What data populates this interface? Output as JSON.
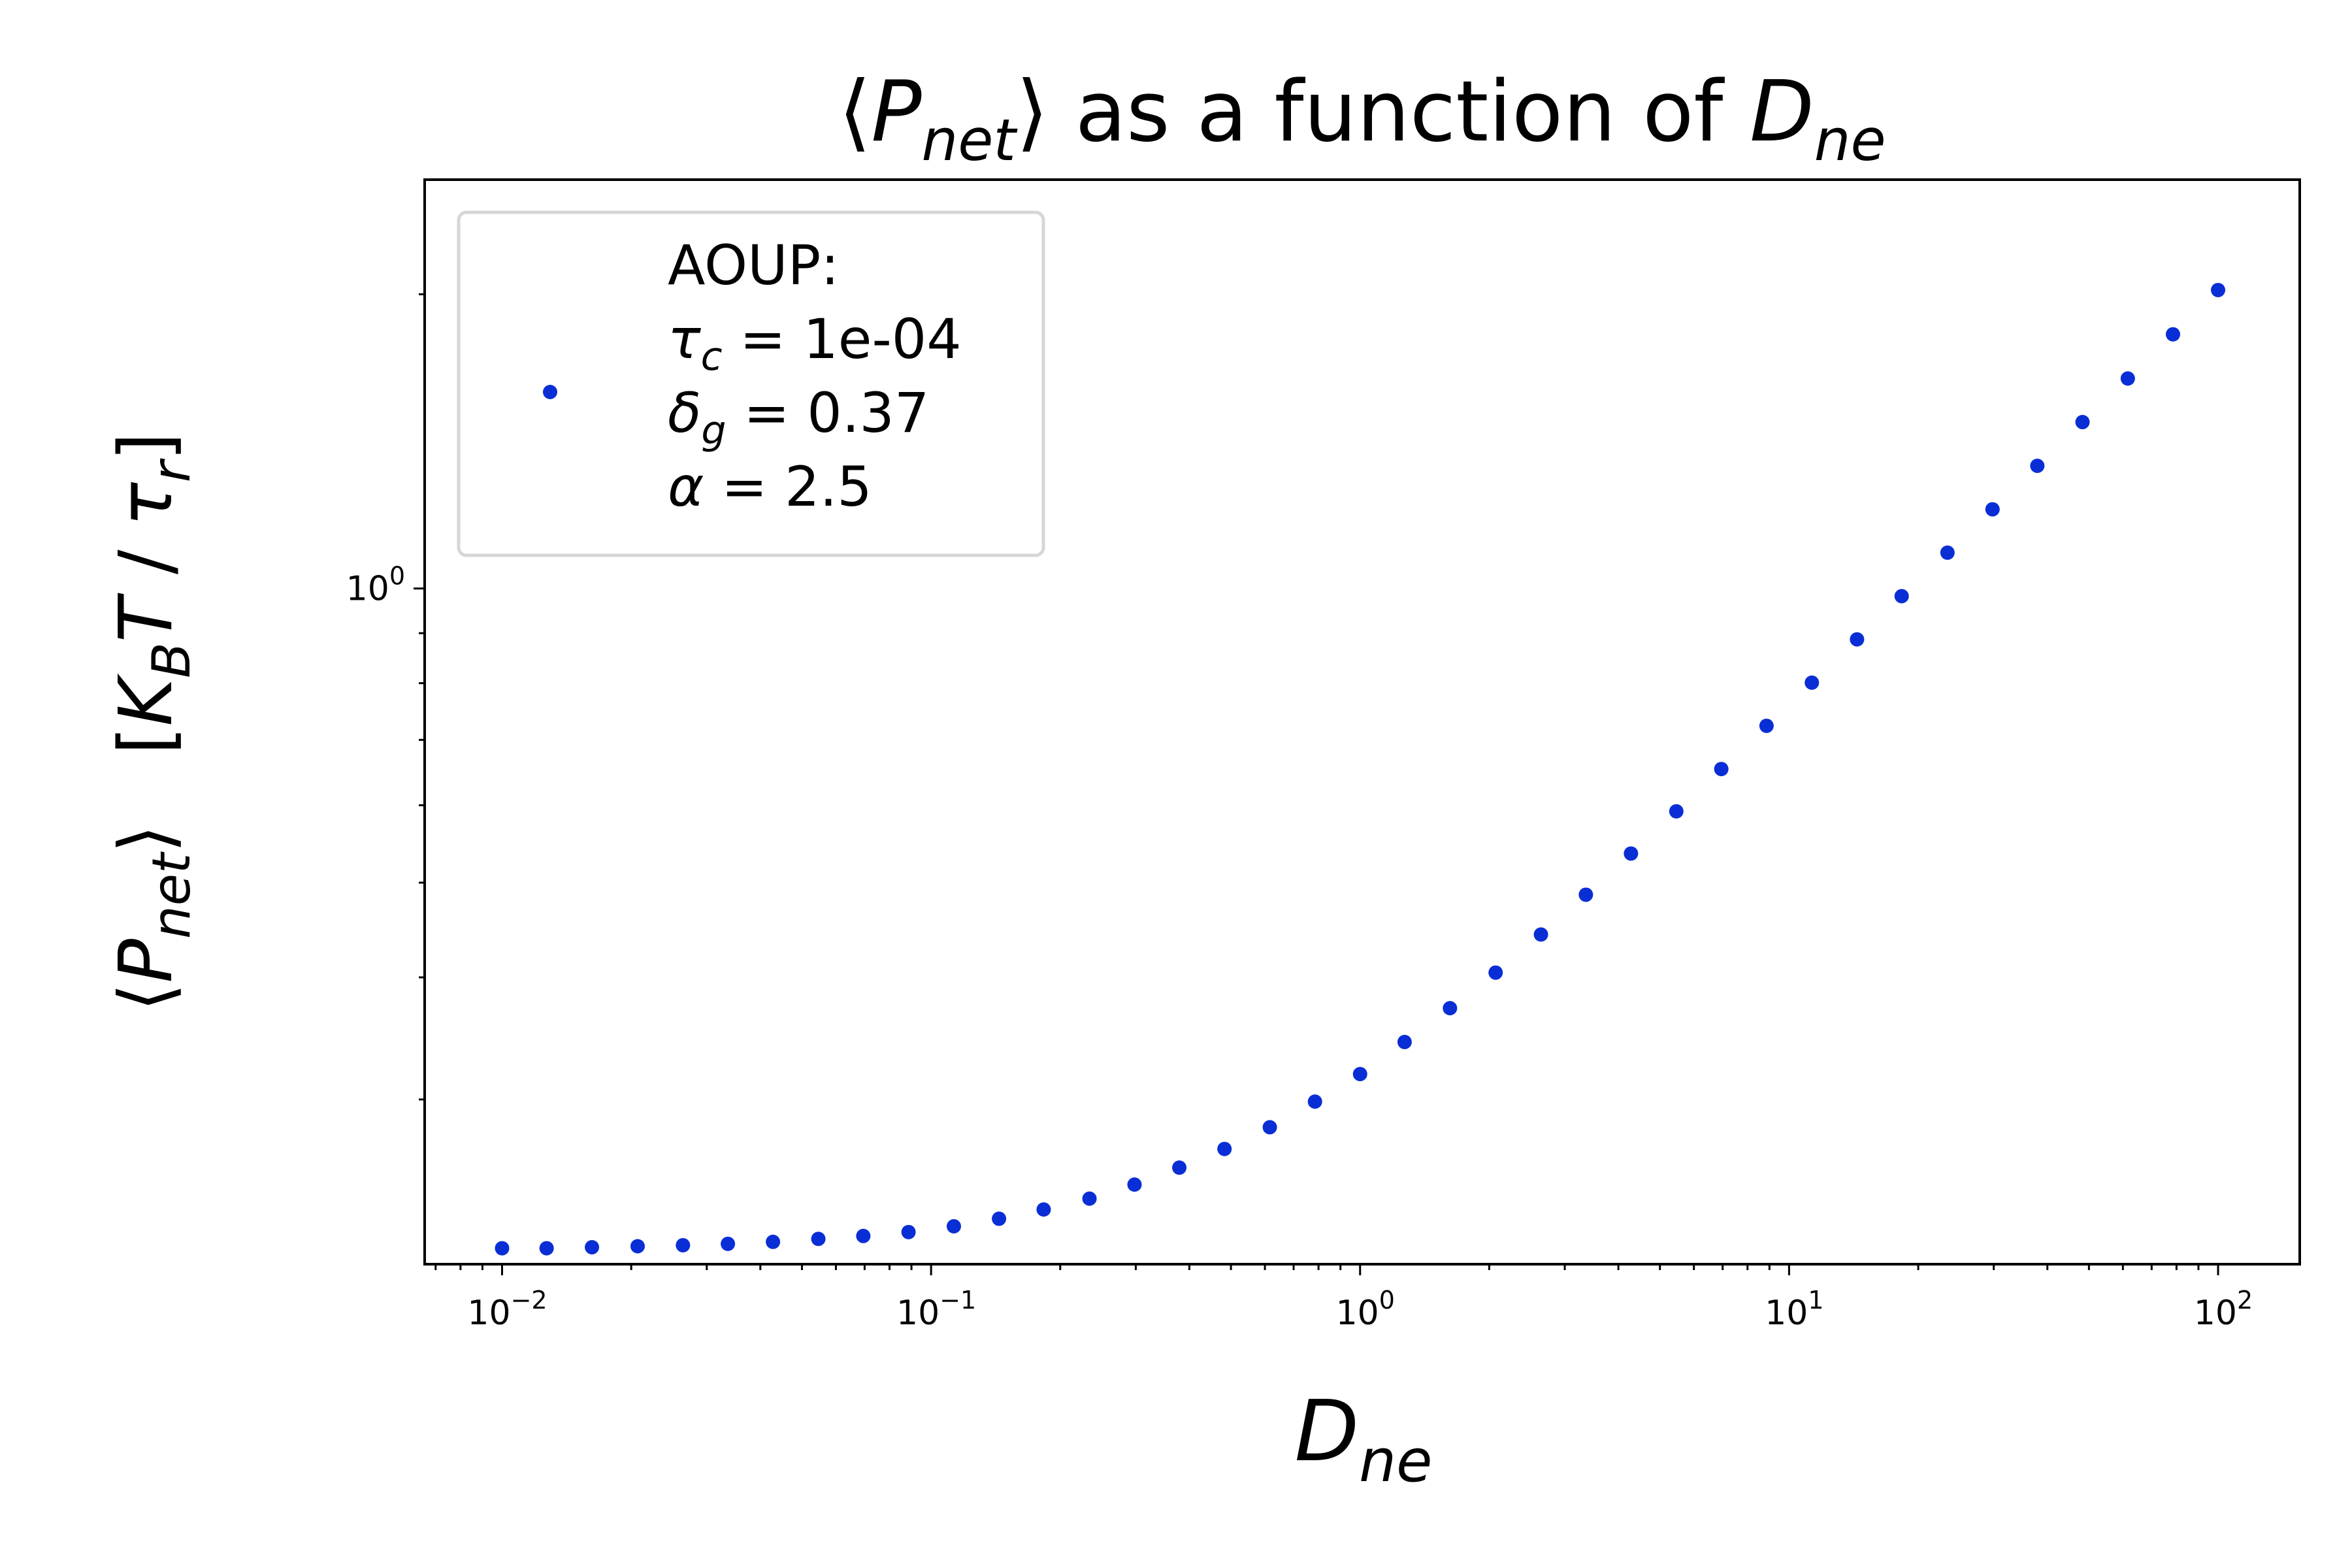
{
  "chart_data": {
    "type": "scatter",
    "title": {
      "pre": "⟨",
      "main": "P",
      "sub": "net",
      "post": "⟩ as a function of ",
      "main2": "D",
      "sub2": "ne"
    },
    "xlabel": {
      "main": "D",
      "sub": "ne"
    },
    "ylabel": {
      "l1": "⟨",
      "main1": "P",
      "sub1": "net",
      "r1": "⟩",
      "bracket_open": "[",
      "main2": "K",
      "sub2": "B",
      "main3": "T",
      "slash": " / ",
      "main4": "τ",
      "sub4": "r",
      "bracket_close": "]"
    },
    "x_scale": "log",
    "y_scale": "log",
    "xlim": [
      0.0066,
      155
    ],
    "ylim": [
      0.2035,
      2.62
    ],
    "x_ticks": [
      {
        "value": 0.01,
        "base": "10",
        "exp": "−2"
      },
      {
        "value": 0.1,
        "base": "10",
        "exp": "−1"
      },
      {
        "value": 1,
        "base": "10",
        "exp": "0"
      },
      {
        "value": 10,
        "base": "10",
        "exp": "1"
      },
      {
        "value": 100,
        "base": "10",
        "exp": "2"
      }
    ],
    "y_ticks": [
      {
        "value": 1,
        "base": "10",
        "exp": "0"
      }
    ],
    "y_minor_ticks": [
      0.3,
      0.4,
      0.5,
      0.6,
      0.7,
      0.8,
      0.9,
      2
    ],
    "grid": false,
    "legend_position": "top-left",
    "marker_color": "#0a2ed6",
    "series": [
      {
        "legend_lines": [
          {
            "text": "AOUP:"
          },
          {
            "sym": "τ",
            "sub": "c",
            "rest": " = 1e-04"
          },
          {
            "sym": "δ",
            "sub": "g",
            "rest": " = 0.37"
          },
          {
            "sym": "α",
            "sub": "",
            "rest": " = 2.5"
          }
        ],
        "x": [
          0.01,
          0.0127,
          0.0162,
          0.0207,
          0.0264,
          0.0336,
          0.0428,
          0.0546,
          0.0695,
          0.0886,
          0.113,
          0.144,
          0.183,
          0.234,
          0.298,
          0.379,
          0.483,
          0.616,
          0.785,
          1.0,
          1.27,
          1.62,
          2.07,
          2.64,
          3.36,
          4.28,
          5.46,
          6.95,
          8.86,
          11.3,
          14.4,
          18.3,
          23.4,
          29.8,
          37.9,
          48.3,
          61.6,
          78.5,
          100
        ],
        "y": [
          0.2113,
          0.2113,
          0.2118,
          0.2123,
          0.2128,
          0.2135,
          0.2145,
          0.216,
          0.2175,
          0.2195,
          0.2225,
          0.2265,
          0.2315,
          0.2375,
          0.2455,
          0.2555,
          0.267,
          0.281,
          0.2985,
          0.3185,
          0.3435,
          0.372,
          0.4045,
          0.4425,
          0.486,
          0.5355,
          0.5915,
          0.6535,
          0.7235,
          0.801,
          0.887,
          0.982,
          1.088,
          1.205,
          1.335,
          1.48,
          1.64,
          1.82,
          2.02
        ]
      }
    ]
  }
}
